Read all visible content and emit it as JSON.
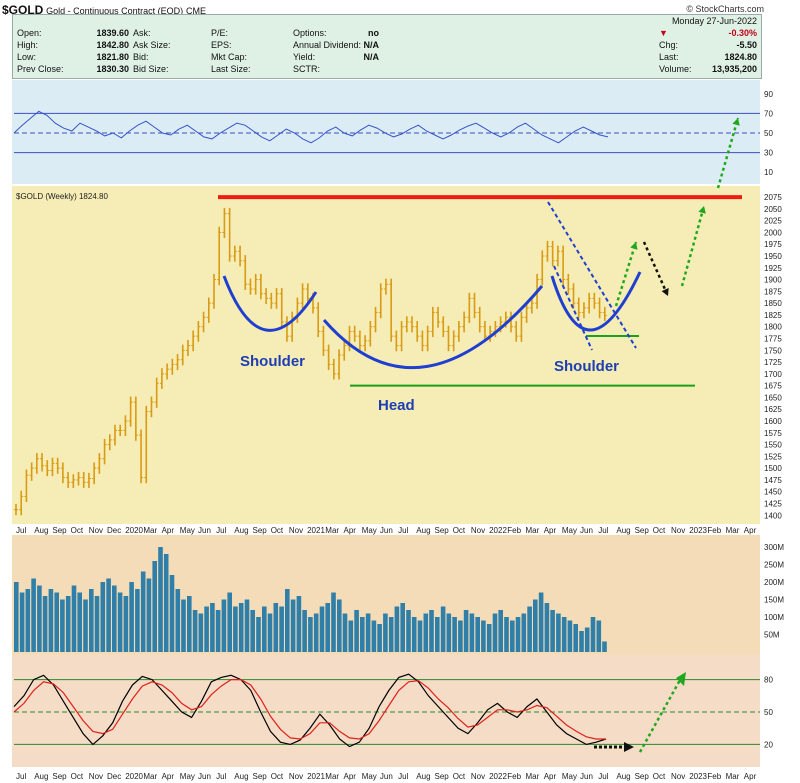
{
  "header": {
    "symbol": "$GOLD",
    "description": "Gold - Continuous Contract (EOD)",
    "exchange": "CME",
    "credit": "© StockCharts.com",
    "date": "Monday 27-Jun-2022"
  },
  "quote": {
    "col1": [
      [
        "Open:",
        "1839.60"
      ],
      [
        "High:",
        "1842.80"
      ],
      [
        "Low:",
        "1821.80"
      ],
      [
        "Prev Close:",
        "1830.30"
      ]
    ],
    "col2": [
      [
        "Ask:",
        ""
      ],
      [
        "Ask Size:",
        ""
      ],
      [
        "Bid:",
        ""
      ],
      [
        "Bid Size:",
        ""
      ]
    ],
    "col3": [
      [
        "P/E:",
        ""
      ],
      [
        "EPS:",
        ""
      ],
      [
        "Mkt Cap:",
        ""
      ],
      [
        "Last Size:",
        ""
      ]
    ],
    "col4": [
      [
        "Options:",
        "no"
      ],
      [
        "Annual Dividend:",
        "N/A"
      ],
      [
        "Yield:",
        "N/A"
      ],
      [
        "SCTR:",
        ""
      ]
    ],
    "change_pct": "-0.30%",
    "right": [
      [
        "Chg:",
        "-5.50"
      ],
      [
        "Last:",
        "1824.80"
      ],
      [
        "Volume:",
        "13,935,200"
      ]
    ]
  },
  "chart_data": [
    {
      "type": "line",
      "panel": "indicator-top",
      "ylim": [
        0,
        100
      ],
      "yticks": [
        10,
        30,
        50,
        70,
        90
      ],
      "reference_lines": [
        30,
        50,
        70
      ],
      "values": [
        50,
        58,
        65,
        72,
        68,
        60,
        55,
        52,
        60,
        56,
        52,
        47,
        50,
        45,
        52,
        58,
        62,
        56,
        50,
        48,
        54,
        58,
        52,
        46,
        44,
        50,
        55,
        60,
        58,
        52,
        46,
        42,
        48,
        54,
        50,
        44,
        40,
        45,
        52,
        56,
        50,
        47,
        53,
        58,
        55,
        50,
        46,
        49,
        54,
        58,
        52,
        48,
        44,
        48,
        53,
        57,
        60,
        55,
        50,
        46,
        50,
        56,
        60,
        54,
        48,
        44,
        40,
        46,
        52,
        56,
        52,
        48,
        46
      ]
    },
    {
      "type": "bar",
      "panel": "price",
      "series_name": "$GOLD (Weekly) 1824.80",
      "ylim": [
        1390,
        2090
      ],
      "yticks": [
        1400,
        1425,
        1450,
        1475,
        1500,
        1525,
        1550,
        1575,
        1600,
        1625,
        1650,
        1675,
        1700,
        1725,
        1750,
        1775,
        1800,
        1825,
        1850,
        1875,
        1900,
        1925,
        1950,
        1975,
        2000,
        2025,
        2050,
        2075
      ],
      "x_ticks": [
        "Jul",
        "Aug",
        "Sep",
        "Oct",
        "Nov",
        "Dec",
        "2020",
        "Mar",
        "Apr",
        "May",
        "Jun",
        "Jul",
        "Aug",
        "Sep",
        "Oct",
        "Nov",
        "2021",
        "Mar",
        "Apr",
        "May",
        "Jun",
        "Jul",
        "Aug",
        "Sep",
        "Oct",
        "Nov",
        "2022",
        "Feb",
        "Mar",
        "Apr",
        "May",
        "Jun",
        "Jul",
        "Aug",
        "Sep",
        "Oct",
        "Nov",
        "2023",
        "Feb",
        "Mar",
        "Apr"
      ],
      "closes": [
        1412,
        1440,
        1485,
        1500,
        1520,
        1505,
        1495,
        1510,
        1500,
        1480,
        1470,
        1475,
        1480,
        1470,
        1478,
        1500,
        1520,
        1550,
        1560,
        1580,
        1580,
        1600,
        1640,
        1570,
        1480,
        1620,
        1640,
        1680,
        1700,
        1710,
        1720,
        1730,
        1750,
        1760,
        1780,
        1800,
        1820,
        1850,
        1900,
        2000,
        2040,
        1950,
        1960,
        1940,
        1890,
        1880,
        1900,
        1870,
        1860,
        1850,
        1870,
        1810,
        1780,
        1820,
        1850,
        1880,
        1860,
        1840,
        1790,
        1750,
        1720,
        1700,
        1740,
        1760,
        1790,
        1780,
        1760,
        1770,
        1800,
        1830,
        1880,
        1890,
        1780,
        1760,
        1800,
        1810,
        1800,
        1780,
        1760,
        1790,
        1830,
        1810,
        1790,
        1760,
        1780,
        1800,
        1820,
        1860,
        1830,
        1800,
        1780,
        1790,
        1800,
        1810,
        1820,
        1800,
        1780,
        1820,
        1840,
        1850,
        1900,
        1950,
        1970,
        1940,
        1960,
        1900,
        1880,
        1850,
        1830,
        1840,
        1860,
        1850,
        1830,
        1824
      ],
      "annotations": [
        "Shoulder",
        "Head",
        "Shoulder"
      ],
      "resistance": 2075,
      "neckline": 1675
    },
    {
      "type": "bar",
      "panel": "volume",
      "yticks": [
        "300M",
        "250M",
        "200M",
        "150M",
        "100M",
        "50M"
      ],
      "ylim": [
        0,
        320
      ],
      "values": [
        200,
        170,
        180,
        210,
        190,
        160,
        180,
        170,
        150,
        160,
        190,
        170,
        150,
        180,
        160,
        200,
        210,
        190,
        170,
        160,
        200,
        180,
        230,
        210,
        260,
        300,
        280,
        220,
        180,
        150,
        160,
        120,
        110,
        130,
        140,
        120,
        150,
        170,
        130,
        140,
        150,
        120,
        100,
        130,
        110,
        140,
        130,
        180,
        150,
        160,
        120,
        100,
        110,
        130,
        140,
        170,
        150,
        110,
        90,
        120,
        100,
        110,
        90,
        80,
        110,
        100,
        130,
        140,
        120,
        100,
        90,
        110,
        120,
        100,
        130,
        110,
        100,
        90,
        120,
        110,
        100,
        90,
        80,
        110,
        120,
        100,
        90,
        100,
        110,
        130,
        150,
        170,
        140,
        120,
        110,
        100,
        90,
        80,
        60,
        70,
        100,
        90,
        30
      ]
    },
    {
      "type": "line",
      "panel": "indicator-bottom",
      "ylim": [
        0,
        100
      ],
      "yticks": [
        20,
        50,
        80
      ],
      "reference_lines": [
        20,
        50,
        80
      ],
      "series": [
        {
          "name": "",
          "color": "#000000",
          "values": [
            55,
            65,
            80,
            84,
            75,
            60,
            45,
            30,
            20,
            28,
            40,
            60,
            75,
            83,
            80,
            70,
            60,
            50,
            45,
            60,
            78,
            82,
            84,
            80,
            70,
            50,
            32,
            22,
            20,
            24,
            35,
            48,
            38,
            25,
            18,
            22,
            35,
            55,
            70,
            82,
            85,
            78,
            65,
            55,
            45,
            35,
            30,
            40,
            52,
            58,
            50,
            45,
            55,
            62,
            50,
            38,
            30,
            25,
            20,
            22,
            25
          ]
        },
        {
          "name": "",
          "color": "#e0201a",
          "values": [
            50,
            58,
            70,
            78,
            76,
            68,
            55,
            42,
            32,
            30,
            34,
            48,
            62,
            74,
            78,
            75,
            68,
            58,
            52,
            55,
            66,
            74,
            80,
            80,
            75,
            62,
            46,
            34,
            26,
            25,
            30,
            40,
            40,
            32,
            26,
            25,
            30,
            42,
            56,
            70,
            78,
            79,
            72,
            62,
            54,
            44,
            36,
            38,
            45,
            52,
            52,
            50,
            52,
            56,
            54,
            46,
            38,
            32,
            27,
            25,
            25
          ]
        }
      ]
    }
  ]
}
